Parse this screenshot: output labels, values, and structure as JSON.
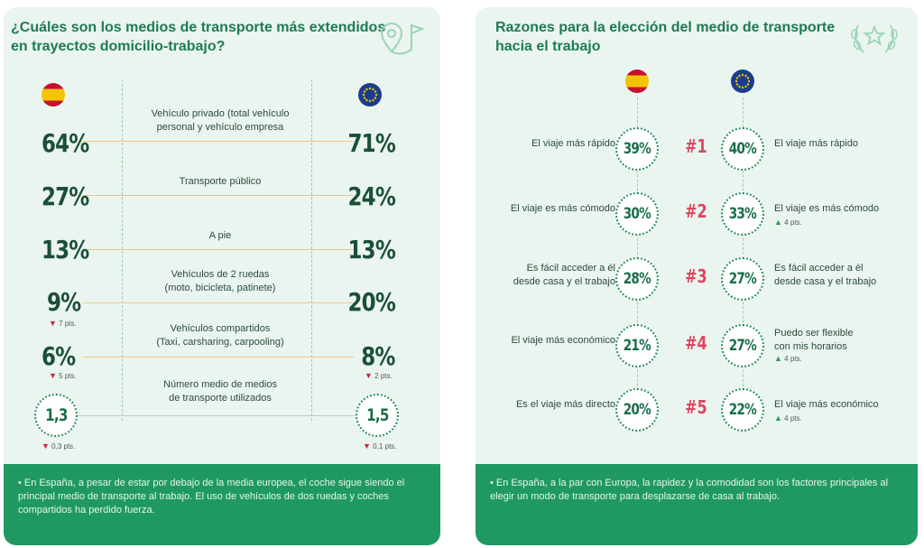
{
  "left": {
    "title_line1": "¿Cuáles son los medios de transporte más extendidos",
    "title_line2": "en trayectos domicilio-trabajo?",
    "rows": [
      {
        "label1": "Vehículo privado (total vehículo",
        "label2": "personal y vehículo empresa",
        "es": "64%",
        "eu": "71%",
        "es_delta": "",
        "eu_delta": ""
      },
      {
        "label1": "Transporte público",
        "label2": "",
        "es": "27%",
        "eu": "24%",
        "es_delta": "",
        "eu_delta": ""
      },
      {
        "label1": "A pie",
        "label2": "",
        "es": "13%",
        "eu": "13%",
        "es_delta": "",
        "eu_delta": ""
      },
      {
        "label1": "Vehículos de 2 ruedas",
        "label2": "(moto, bicicleta, patinete)",
        "es": "9%",
        "eu": "20%",
        "es_delta": "7 pts.",
        "eu_delta": ""
      },
      {
        "label1": "Vehículos compartidos",
        "label2": "(Taxi, carsharing, carpooling)",
        "es": "6%",
        "eu": "8%",
        "es_delta": "5 pts.",
        "eu_delta": "2 pts."
      }
    ],
    "avg": {
      "label1": "Número medio de medios",
      "label2": "de transporte utilizados",
      "es": "1,3",
      "eu": "1,5",
      "es_delta": "0,3 pts.",
      "eu_delta": "0,1 pts."
    },
    "footer": "• En España, a pesar de estar por debajo de la media europea, el coche sigue siendo el principal medio de transporte al trabajo. El uso de vehículos de dos ruedas y coches compartidos ha perdido fuerza."
  },
  "right": {
    "title_line1": "Razones para la elección del medio de transporte",
    "title_line2": "hacia el trabajo",
    "rows": [
      {
        "es_label": "El viaje más rápido",
        "es_label2": "",
        "es": "39%",
        "rank": "#1",
        "eu": "40%",
        "eu_label": "El viaje más rápido",
        "eu_label2": "",
        "eu_delta": ""
      },
      {
        "es_label": "El viaje es más cómodo",
        "es_label2": "",
        "es": "30%",
        "rank": "#2",
        "eu": "33%",
        "eu_label": "El viaje es más cómodo",
        "eu_label2": "",
        "eu_delta": "4 pts."
      },
      {
        "es_label": "Es fácil acceder a él",
        "es_label2": "desde casa y el trabajo",
        "es": "28%",
        "rank": "#3",
        "eu": "27%",
        "eu_label": "Es fácil acceder a él",
        "eu_label2": "desde casa y el trabajo",
        "eu_delta": ""
      },
      {
        "es_label": "El viaje más económico",
        "es_label2": "",
        "es": "21%",
        "rank": "#4",
        "eu": "27%",
        "eu_label": "Puedo ser flexible",
        "eu_label2": "con mis horarios",
        "eu_delta": "4 pts."
      },
      {
        "es_label": "Es el viaje más directo",
        "es_label2": "",
        "es": "20%",
        "rank": "#5",
        "eu": "22%",
        "eu_label": "El viaje más económico",
        "eu_label2": "",
        "eu_delta": "4 pts."
      }
    ],
    "footer": "• En España, a la par con Europa, la rapidez y la comodidad son los factores principales al elegir un modo de transporte para desplazarse de casa al trabajo."
  },
  "colors": {
    "accent": "#1f9961",
    "panel_bg": "#eaf5ef",
    "rank": "#e0465f",
    "down": "#d0243a",
    "up": "#2e9a57"
  },
  "chart_data": [
    {
      "type": "table",
      "title": "¿Cuáles son los medios de transporte más extendidos en trayectos domicilio-trabajo?",
      "categories": [
        "Vehículo privado (total vehículo personal y vehículo empresa",
        "Transporte público",
        "A pie",
        "Vehículos de 2 ruedas (moto, bicicleta, patinete)",
        "Vehículos compartidos (Taxi, carsharing, carpooling)"
      ],
      "series": [
        {
          "values": [
            64,
            27,
            13,
            9,
            6
          ],
          "deltas": [
            null,
            null,
            null,
            -7,
            -5
          ]
        },
        {
          "values": [
            71,
            24,
            13,
            20,
            8
          ],
          "deltas": [
            null,
            null,
            null,
            null,
            -2
          ]
        }
      ],
      "average": {
        "label": "Número medio de medios de transporte utilizados",
        "es": 1.3,
        "eu": 1.5,
        "es_delta": -0.3,
        "eu_delta": -0.1
      }
    },
    {
      "type": "table",
      "title": "Razones para la elección del medio de transporte hacia el trabajo",
      "ranks": [
        "#1",
        "#2",
        "#3",
        "#4",
        "#5"
      ],
      "series": [
        {
          "categories": [
            "El viaje más rápido",
            "El viaje es más cómodo",
            "Es fácil acceder a él desde casa y el trabajo",
            "El viaje más económico",
            "Es el viaje más directo"
          ],
          "values": [
            39,
            30,
            28,
            21,
            20
          ]
        },
        {
          "categories": [
            "El viaje más rápido",
            "El viaje es más cómodo",
            "Es fácil acceder a él desde casa y el trabajo",
            "Puedo ser flexible con mis horarios",
            "El viaje más económico"
          ],
          "values": [
            40,
            33,
            27,
            27,
            22
          ],
          "deltas": [
            null,
            4,
            null,
            4,
            4
          ]
        }
      ]
    }
  ]
}
